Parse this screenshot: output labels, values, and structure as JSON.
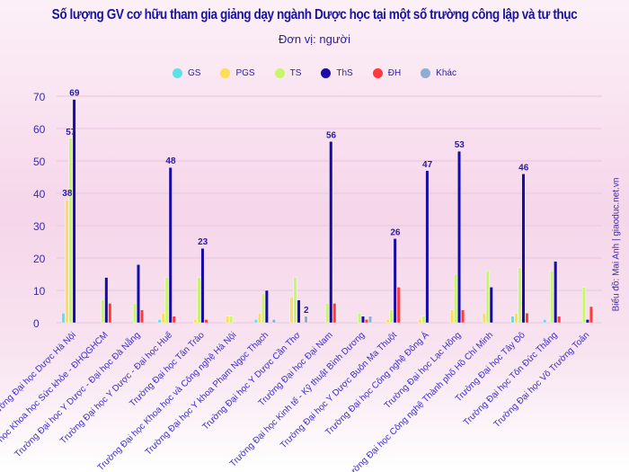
{
  "chart_data": {
    "type": "bar",
    "title": "Số lượng GV cơ hữu tham gia giảng dạy ngành Dược học tại một số trường công lập và tư thục",
    "subtitle": "Đơn vị: người",
    "credit": "Biểu đồ: Mai Anh | giaoduc.net.vn",
    "ylim": [
      0,
      70
    ],
    "yticks": [
      0,
      10,
      20,
      30,
      40,
      50,
      60,
      70
    ],
    "grid": true,
    "legend_position": "top",
    "categories": [
      "Trường Đại học Dược Hà Nội",
      "Trường Đại học Khoa học Sức khỏe - ĐHQGHCM",
      "Trường Đại học Y Dược - Đại học Đà Nẵng",
      "Trường Đại học Y Dược - Đại học Huế",
      "Trường Đại học Tân Trào",
      "Trường Đại học Khoa học và Công nghệ Hà Nội",
      "Trường Đại học Y khoa Phạm Ngọc Thạch",
      "Trường Đại học Y Dược Cần Thơ",
      "Trường Đại học Đại Nam",
      "Trường Đại học Kinh tế - Kỹ thuật Bình Dương",
      "Trường Đại học Y Dược Buôn Ma Thuột",
      "Trường Đại học Công nghệ Đông Á",
      "Trường Đại học Lạc Hồng",
      "Trường Đại học Công nghệ Thành phố Hồ Chí Minh",
      "Trường Đại học Tây Đô",
      "Trường Đại học Tôn Đức Thắng",
      "Trường Đại học Võ Trường Toản"
    ],
    "series": [
      {
        "name": "GS",
        "color": "#5ee0e6",
        "values": [
          3,
          0,
          0,
          1,
          0,
          0,
          1,
          0,
          0,
          0,
          0,
          0,
          0,
          0,
          2,
          1,
          0
        ]
      },
      {
        "name": "PGS",
        "color": "#ffdb5a",
        "values": [
          38,
          0,
          0,
          3,
          1,
          2,
          3,
          8,
          0,
          0,
          1,
          1,
          4,
          3,
          3,
          0,
          0
        ]
      },
      {
        "name": "TS",
        "color": "#c6f76a",
        "values": [
          57,
          7,
          6,
          14,
          14,
          2,
          9,
          14,
          6,
          3,
          4,
          2,
          15,
          16,
          17,
          16,
          11
        ]
      },
      {
        "name": "ThS",
        "color": "#1a0aa6",
        "values": [
          69,
          14,
          18,
          48,
          23,
          0,
          10,
          7,
          56,
          2,
          26,
          47,
          53,
          11,
          46,
          19,
          1
        ]
      },
      {
        "name": "ĐH",
        "color": "#ff3a3a",
        "values": [
          0,
          6,
          4,
          2,
          1,
          0,
          0,
          0,
          6,
          1,
          11,
          0,
          4,
          0,
          3,
          2,
          5
        ]
      },
      {
        "name": "Khác",
        "color": "#8eacd4",
        "values": [
          0,
          0,
          0,
          0,
          0,
          0,
          1,
          2,
          0,
          2,
          0,
          0,
          0,
          0,
          0,
          0,
          0
        ]
      }
    ],
    "data_labels": [
      {
        "category": 0,
        "series": 1,
        "text": "38"
      },
      {
        "category": 0,
        "series": 2,
        "text": "57"
      },
      {
        "category": 0,
        "series": 3,
        "text": "69"
      },
      {
        "category": 3,
        "series": 3,
        "text": "48"
      },
      {
        "category": 4,
        "series": 3,
        "text": "23"
      },
      {
        "category": 7,
        "series": 5,
        "text": "2"
      },
      {
        "category": 8,
        "series": 3,
        "text": "56"
      },
      {
        "category": 10,
        "series": 3,
        "text": "26"
      },
      {
        "category": 11,
        "series": 3,
        "text": "47"
      },
      {
        "category": 12,
        "series": 3,
        "text": "53"
      },
      {
        "category": 14,
        "series": 3,
        "text": "46"
      }
    ]
  }
}
